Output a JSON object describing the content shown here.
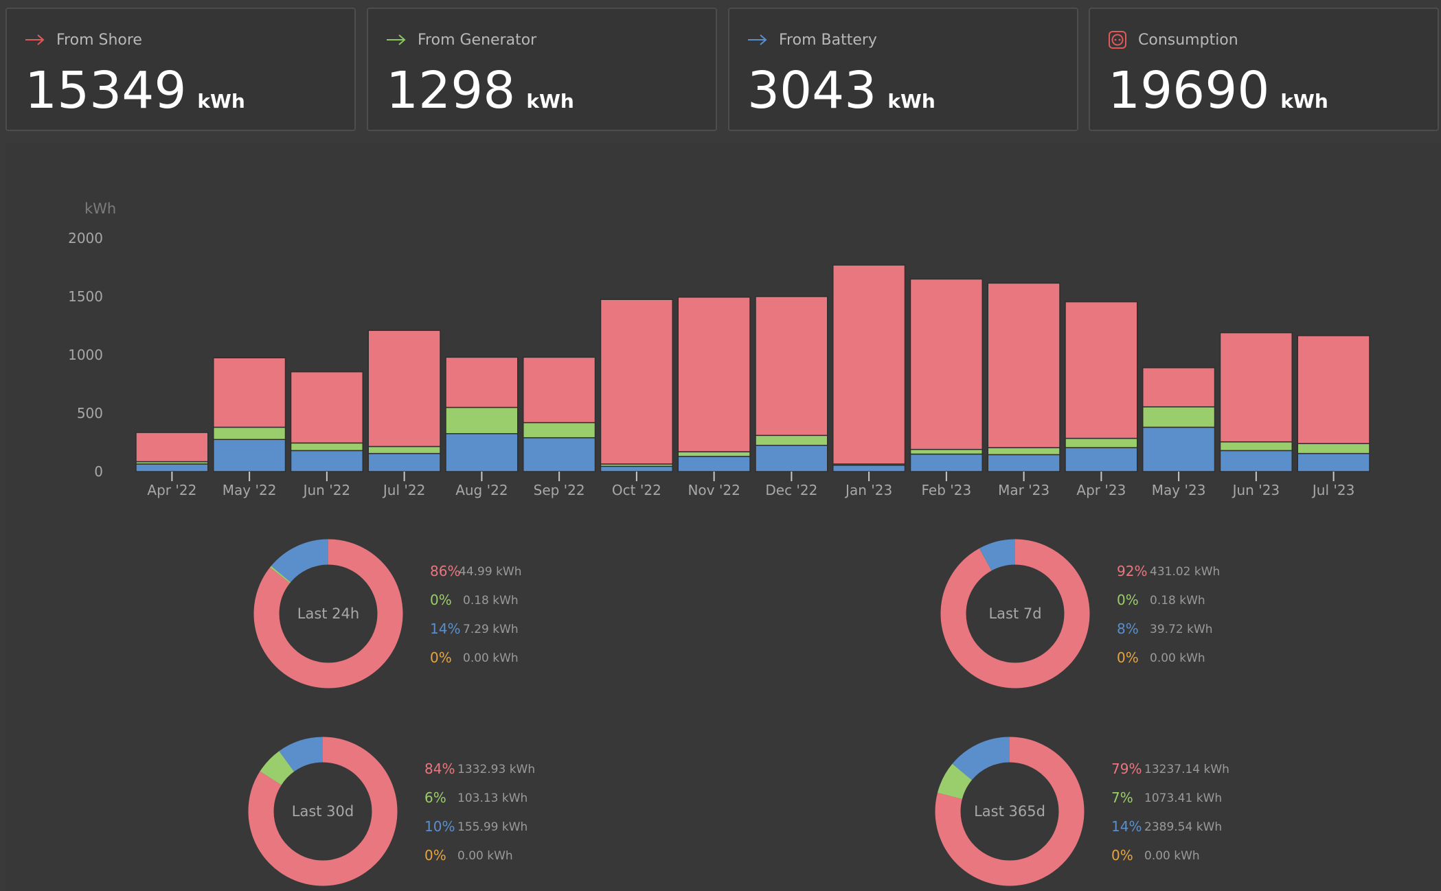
{
  "colors": {
    "shore": "#e97780",
    "generator": "#9acd6b",
    "battery": "#5b8fcc",
    "other": "#e5a545",
    "consumption_icon": "#e05a5a"
  },
  "cards": [
    {
      "title": "From Shore",
      "value": "15349",
      "unit": "kWh",
      "icon": "arrow-right-icon",
      "color": "#e05a5a"
    },
    {
      "title": "From Generator",
      "value": "1298",
      "unit": "kWh",
      "icon": "arrow-right-icon",
      "color": "#8cc763"
    },
    {
      "title": "From Battery",
      "value": "3043",
      "unit": "kWh",
      "icon": "arrow-right-icon",
      "color": "#5b8fcc"
    },
    {
      "title": "Consumption",
      "value": "19690",
      "unit": "kWh",
      "icon": "power-outlet-icon",
      "color": "#e05a5a"
    }
  ],
  "chart_data": {
    "type": "bar",
    "stacked": true,
    "ylabel": "kWh",
    "ylim": [
      0,
      2000
    ],
    "yticks": [
      0,
      500,
      1000,
      1500,
      2000
    ],
    "categories": [
      "Apr '22",
      "May '22",
      "Jun '22",
      "Jul '22",
      "Aug '22",
      "Sep '22",
      "Oct '22",
      "Nov '22",
      "Dec '22",
      "Jan '23",
      "Feb '23",
      "Mar '23",
      "Apr '23",
      "May '23",
      "Jun '23",
      "Jul '23"
    ],
    "series": [
      {
        "name": "From Battery",
        "color": "#5b8fcc",
        "values": [
          65,
          275,
          180,
          155,
          325,
          290,
          45,
          130,
          225,
          55,
          150,
          145,
          205,
          380,
          180,
          155
        ]
      },
      {
        "name": "From Generator",
        "color": "#9acd6b",
        "values": [
          20,
          105,
          65,
          60,
          225,
          130,
          20,
          40,
          85,
          10,
          40,
          60,
          80,
          175,
          75,
          85
        ]
      },
      {
        "name": "From Shore",
        "color": "#e97780",
        "values": [
          250,
          595,
          610,
          995,
          430,
          560,
          1410,
          1325,
          1190,
          1705,
          1460,
          1410,
          1170,
          335,
          935,
          925
        ]
      }
    ]
  },
  "donuts": [
    {
      "label": "Last 24h",
      "rows": [
        {
          "pct": "86%",
          "kwh": "44.99 kWh",
          "value": 86
        },
        {
          "pct": "0%",
          "kwh": "0.18 kWh",
          "value": 0.4
        },
        {
          "pct": "14%",
          "kwh": "7.29 kWh",
          "value": 14
        },
        {
          "pct": "0%",
          "kwh": "0.00 kWh",
          "value": 0
        }
      ]
    },
    {
      "label": "Last 7d",
      "rows": [
        {
          "pct": "92%",
          "kwh": "431.02 kWh",
          "value": 92
        },
        {
          "pct": "0%",
          "kwh": "0.18 kWh",
          "value": 0.04
        },
        {
          "pct": "8%",
          "kwh": "39.72 kWh",
          "value": 8
        },
        {
          "pct": "0%",
          "kwh": "0.00 kWh",
          "value": 0
        }
      ]
    },
    {
      "label": "Last 30d",
      "rows": [
        {
          "pct": "84%",
          "kwh": "1332.93 kWh",
          "value": 84
        },
        {
          "pct": "6%",
          "kwh": "103.13 kWh",
          "value": 6
        },
        {
          "pct": "10%",
          "kwh": "155.99 kWh",
          "value": 10
        },
        {
          "pct": "0%",
          "kwh": "0.00 kWh",
          "value": 0
        }
      ]
    },
    {
      "label": "Last 365d",
      "rows": [
        {
          "pct": "79%",
          "kwh": "13237.14 kWh",
          "value": 79
        },
        {
          "pct": "7%",
          "kwh": "1073.41 kWh",
          "value": 7
        },
        {
          "pct": "14%",
          "kwh": "2389.54 kWh",
          "value": 14
        },
        {
          "pct": "0%",
          "kwh": "0.00 kWh",
          "value": 0
        }
      ]
    }
  ]
}
